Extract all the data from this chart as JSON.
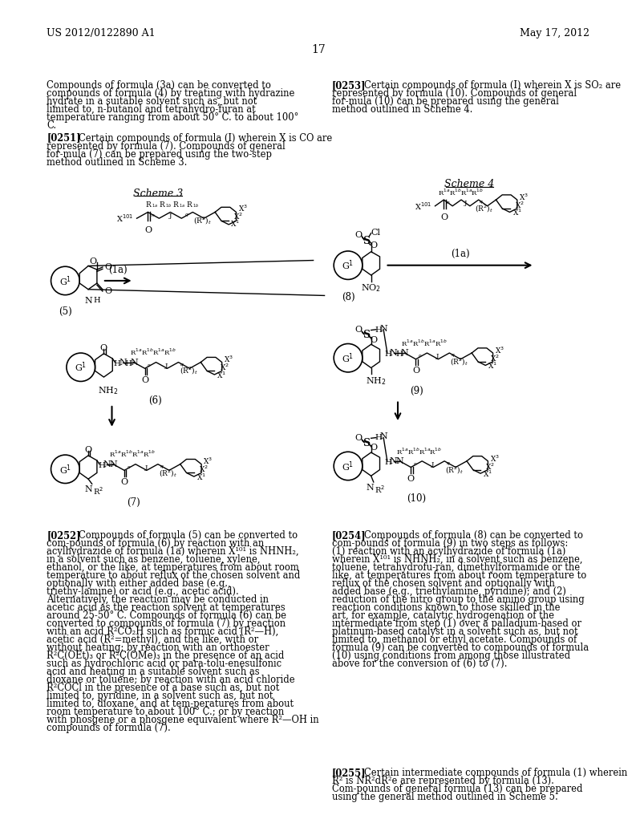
{
  "bg_color": "#ffffff",
  "header_left": "US 2012/0122890 A1",
  "header_right": "May 17, 2012",
  "page_number": "17"
}
